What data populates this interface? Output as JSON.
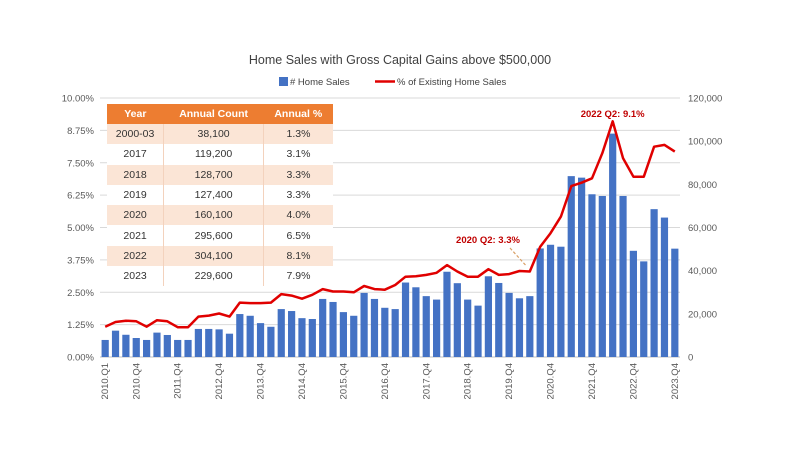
{
  "chart_data": {
    "type": "bar+line",
    "title": "Home Sales with Gross Capital Gains above $500,000",
    "legend": {
      "placement": "top",
      "entries": [
        "# Home Sales",
        "% of Existing Home Sales"
      ]
    },
    "colors": {
      "bars": "#4472C4",
      "line": "#E00000",
      "annotation": "#C00000",
      "table_header": "#ED7D31",
      "table_stripe": "#FBE5D6"
    },
    "grid": true,
    "y_left": {
      "range": [
        0,
        10
      ],
      "ticks": [
        "0.00%",
        "1.25%",
        "2.50%",
        "3.75%",
        "5.00%",
        "6.25%",
        "7.50%",
        "8.75%",
        "10.00%"
      ]
    },
    "y_right": {
      "range": [
        0,
        120000
      ],
      "ticks": [
        "0",
        "20,000",
        "40,000",
        "60,000",
        "80,000",
        "100,000",
        "120,000"
      ]
    },
    "x_tick_labels": [
      "2010.Q1",
      "2010.Q4",
      "2011.Q4",
      "2012.Q4",
      "2013.Q4",
      "2014.Q4",
      "2015.Q4",
      "2016.Q4",
      "2017.Q4",
      "2018.Q4",
      "2019.Q4",
      "2020.Q4",
      "2021.Q4",
      "2022.Q4",
      "2023.Q4"
    ],
    "categories": [
      "2010.Q1",
      "2010.Q2",
      "2010.Q3",
      "2010.Q4",
      "2011.Q1",
      "2011.Q2",
      "2011.Q3",
      "2011.Q4",
      "2012.Q1",
      "2012.Q2",
      "2012.Q3",
      "2012.Q4",
      "2013.Q1",
      "2013.Q2",
      "2013.Q3",
      "2013.Q4",
      "2014.Q1",
      "2014.Q2",
      "2014.Q3",
      "2014.Q4",
      "2015.Q1",
      "2015.Q2",
      "2015.Q3",
      "2015.Q4",
      "2016.Q1",
      "2016.Q2",
      "2016.Q3",
      "2016.Q4",
      "2017.Q1",
      "2017.Q2",
      "2017.Q3",
      "2017.Q4",
      "2018.Q1",
      "2018.Q2",
      "2018.Q3",
      "2018.Q4",
      "2019.Q1",
      "2019.Q2",
      "2019.Q3",
      "2019.Q4",
      "2020.Q1",
      "2020.Q2",
      "2020.Q3",
      "2020.Q4",
      "2021.Q1",
      "2021.Q2",
      "2021.Q3",
      "2021.Q4",
      "2022.Q1",
      "2022.Q2",
      "2022.Q3",
      "2022.Q4",
      "2023.Q1",
      "2023.Q2",
      "2023.Q3",
      "2023.Q4"
    ],
    "series": [
      {
        "name": "# Home Sales",
        "axis": "right",
        "type": "bar",
        "values": [
          7900,
          12200,
          10300,
          8800,
          7900,
          11300,
          10200,
          7900,
          7900,
          13000,
          13000,
          12800,
          10800,
          19900,
          19100,
          15700,
          14000,
          22200,
          21300,
          18000,
          17600,
          26900,
          25500,
          20800,
          19100,
          29700,
          26900,
          22800,
          22200,
          34500,
          32300,
          28200,
          26600,
          39500,
          34200,
          26600,
          23800,
          37400,
          34300,
          29700,
          27200,
          28200,
          50300,
          52000,
          51100,
          83800,
          83100,
          75400,
          74600,
          103500,
          74600,
          49200,
          44300,
          68500,
          64600,
          50200
        ]
      },
      {
        "name": "% of Existing Home Sales",
        "axis": "left",
        "type": "line",
        "values": [
          1.17,
          1.35,
          1.4,
          1.38,
          1.17,
          1.42,
          1.38,
          1.15,
          1.15,
          1.56,
          1.6,
          1.68,
          1.56,
          2.1,
          2.08,
          2.08,
          2.1,
          2.43,
          2.37,
          2.25,
          2.4,
          2.62,
          2.53,
          2.53,
          2.5,
          2.74,
          2.62,
          2.6,
          2.78,
          3.1,
          3.12,
          3.17,
          3.25,
          3.55,
          3.3,
          3.1,
          3.1,
          3.39,
          3.17,
          3.2,
          3.32,
          3.3,
          4.26,
          4.78,
          5.42,
          6.6,
          6.73,
          6.9,
          7.87,
          9.1,
          7.68,
          6.96,
          6.96,
          8.12,
          8.19,
          7.93
        ]
      }
    ],
    "annotations": [
      {
        "text": "2020 Q2: 3.3%",
        "category": "2020.Q2"
      },
      {
        "text": "2022 Q2: 9.1%",
        "category": "2022.Q2"
      }
    ],
    "table": {
      "headers": [
        "Year",
        "Annual Count",
        "Annual %"
      ],
      "rows": [
        [
          "2000-03",
          "38,100",
          "1.3%"
        ],
        [
          "2017",
          "119,200",
          "3.1%"
        ],
        [
          "2018",
          "128,700",
          "3.3%"
        ],
        [
          "2019",
          "127,400",
          "3.3%"
        ],
        [
          "2020",
          "160,100",
          "4.0%"
        ],
        [
          "2021",
          "295,600",
          "6.5%"
        ],
        [
          "2022",
          "304,100",
          "8.1%"
        ],
        [
          "2023",
          "229,600",
          "7.9%"
        ]
      ]
    }
  }
}
